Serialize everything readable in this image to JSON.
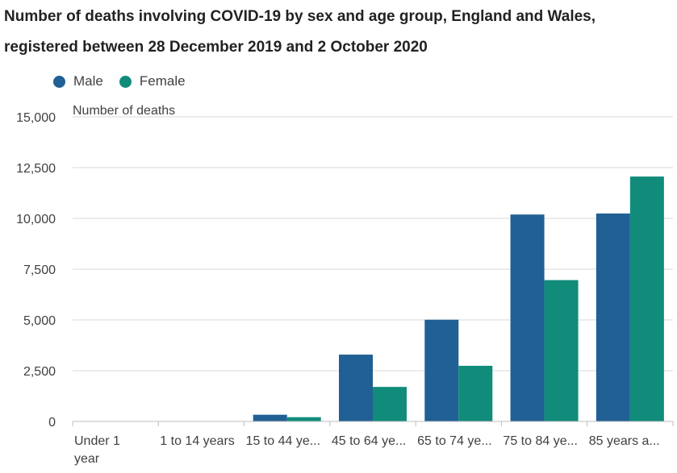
{
  "chart_data": {
    "type": "bar",
    "title": "Number of deaths involving COVID-19 by sex and age group, England and Wales, registered between 28 December 2019 and 2 October 2020",
    "ylabel": "Number of deaths",
    "xlabel": "",
    "ylim": [
      0,
      15000
    ],
    "yticks": [
      0,
      2500,
      5000,
      7500,
      10000,
      12500,
      15000
    ],
    "ytick_labels": [
      "0",
      "2,500",
      "5,000",
      "7,500",
      "10,000",
      "12,500",
      "15,000"
    ],
    "categories": [
      "Under 1 year",
      "1 to 14 years",
      "15 to 44 ye...",
      "45 to 64 ye...",
      "65 to 74 ye...",
      "75 to 84 ye...",
      "85 years a..."
    ],
    "series": [
      {
        "name": "Male",
        "color": "#206095",
        "values": [
          3,
          4,
          330,
          3290,
          5010,
          10190,
          10240
        ]
      },
      {
        "name": "Female",
        "color": "#118c7b",
        "values": [
          2,
          3,
          210,
          1700,
          2740,
          6960,
          12060
        ]
      }
    ],
    "grid": true,
    "legend_position": "top-left"
  }
}
